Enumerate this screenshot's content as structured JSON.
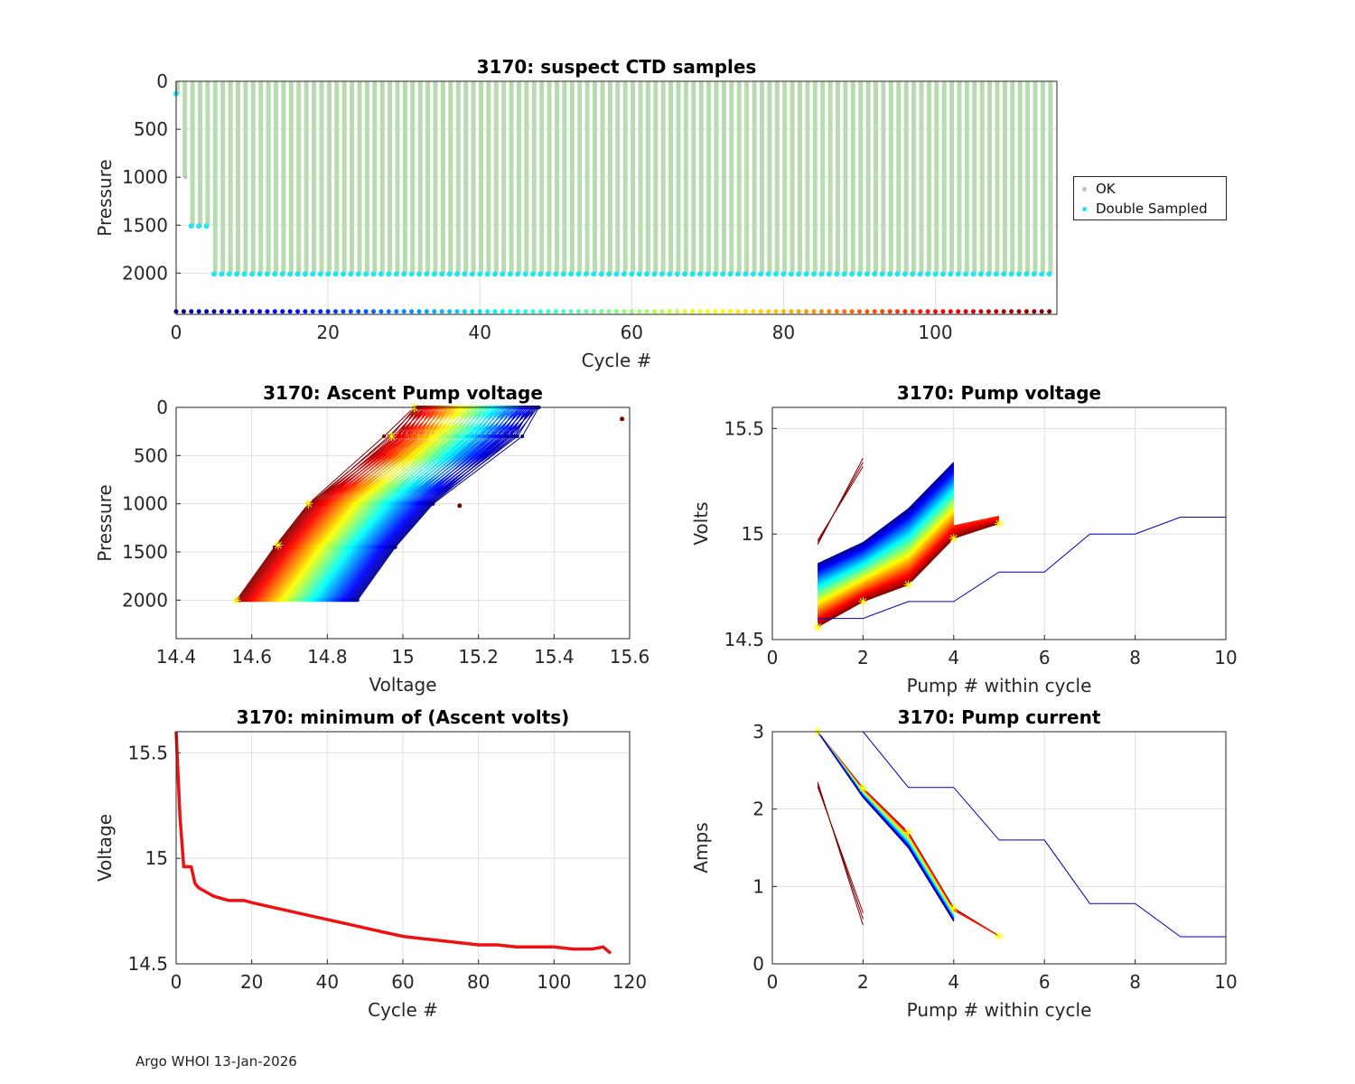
{
  "footer": "Argo WHOI 13-Jan-2026",
  "chart_data": [
    {
      "id": "suspect",
      "type": "scatter",
      "title": "3170: suspect CTD samples",
      "xlabel": "Cycle #",
      "ylabel": "Pressure",
      "xlim": [
        0,
        116
      ],
      "ylim": [
        2430,
        0
      ],
      "xticks": [
        "0",
        "20",
        "40",
        "60",
        "80",
        "100"
      ],
      "yticks": [
        "0",
        "500",
        "1000",
        "1500",
        "2000"
      ],
      "grid": true,
      "legend": {
        "placement": "right",
        "entries": [
          {
            "label": "OK",
            "color": "#c0c0c0"
          },
          {
            "label": "Double Sampled",
            "color": "#22e6ee"
          }
        ]
      },
      "cycles": [
        0,
        115
      ],
      "ok_depth_max": {
        "cycle_0": 130,
        "cycle_1": 1000,
        "cycles_2_4": 1500,
        "cycles_5_115": 2000
      },
      "double_sampled": [
        {
          "cycle": 0,
          "pressure": 130
        },
        {
          "cycles": [
            2,
            4
          ],
          "pressure": 1510
        },
        {
          "cycles": [
            5,
            115
          ],
          "pressure": 2010
        }
      ],
      "cycle_colorbar_row_pressure": 2400
    },
    {
      "id": "ascent",
      "type": "line",
      "title": "3170: Ascent Pump voltage",
      "xlabel": "Voltage",
      "ylabel": "Pressure",
      "xlim": [
        14.4,
        15.6
      ],
      "ylim": [
        2400,
        0
      ],
      "xticks": [
        "14.4",
        "14.6",
        "14.8",
        "15",
        "15.2",
        "15.4",
        "15.6"
      ],
      "yticks": [
        "0",
        "500",
        "1000",
        "1500",
        "2000"
      ],
      "grid": true,
      "profiles": {
        "cycles": 116,
        "pressures": [
          2000,
          1450,
          1000,
          300,
          0
        ],
        "first_cycle_voltages": [
          14.56,
          14.66,
          14.75,
          14.97,
          15.03
        ],
        "last_cycle_voltages": [
          14.88,
          14.98,
          15.08,
          15.3,
          15.36
        ],
        "outlier_point": [
          15.58,
          120
        ]
      },
      "markers_yellow": [
        [
          14.56,
          2000
        ],
        [
          14.67,
          1430
        ],
        [
          14.75,
          1000
        ],
        [
          14.97,
          300
        ],
        [
          15.03,
          0
        ]
      ]
    },
    {
      "id": "pumpvolt",
      "type": "line",
      "title": "3170: Pump voltage",
      "xlabel": "Pump # within cycle",
      "ylabel": "Volts",
      "xlim": [
        0,
        10
      ],
      "ylim": [
        14.5,
        15.6
      ],
      "xticks": [
        "0",
        "2",
        "4",
        "6",
        "8",
        "10"
      ],
      "yticks": [
        "14.5",
        "15",
        "15.5"
      ],
      "grid": true,
      "pumps": [
        1,
        2,
        3,
        4,
        5
      ],
      "first_cycle": [
        14.56,
        14.68,
        14.76,
        14.98,
        15.05
      ],
      "last_cycle": [
        14.86,
        14.96,
        15.12,
        15.34
      ],
      "long_cycle": {
        "pumps": [
          1,
          2,
          3,
          4,
          5,
          6,
          7,
          8,
          9,
          10
        ],
        "volts": [
          14.6,
          14.6,
          14.68,
          14.68,
          14.82,
          14.82,
          15.0,
          15.0,
          15.08,
          15.08
        ]
      },
      "outlier_cycle": {
        "pumps": [
          1,
          2
        ],
        "volts": [
          14.95,
          15.36
        ]
      }
    },
    {
      "id": "minvolt",
      "type": "line",
      "title": "3170: minimum of (Ascent volts)",
      "xlabel": "Cycle #",
      "ylabel": "Voltage",
      "xlim": [
        0,
        120
      ],
      "ylim": [
        14.5,
        15.6
      ],
      "xticks": [
        "0",
        "20",
        "40",
        "60",
        "80",
        "100",
        "120"
      ],
      "yticks": [
        "14.5",
        "15",
        "15.5"
      ],
      "grid": true,
      "series": [
        {
          "name": "min ascent volts",
          "color": "#ee1111",
          "x": [
            0,
            1,
            2,
            3,
            4,
            5,
            6,
            8,
            10,
            12,
            14,
            16,
            18,
            20,
            25,
            30,
            35,
            40,
            45,
            50,
            55,
            60,
            65,
            70,
            75,
            80,
            85,
            90,
            95,
            100,
            105,
            110,
            113,
            115
          ],
          "y": [
            15.6,
            15.2,
            14.96,
            14.96,
            14.96,
            14.88,
            14.86,
            14.84,
            14.82,
            14.81,
            14.8,
            14.8,
            14.8,
            14.79,
            14.77,
            14.75,
            14.73,
            14.71,
            14.69,
            14.67,
            14.65,
            14.63,
            14.62,
            14.61,
            14.6,
            14.59,
            14.59,
            14.58,
            14.58,
            14.58,
            14.57,
            14.57,
            14.58,
            14.55
          ]
        }
      ]
    },
    {
      "id": "pumpcurr",
      "type": "line",
      "title": "3170: Pump current",
      "xlabel": "Pump # within cycle",
      "ylabel": "Amps",
      "xlim": [
        0,
        10
      ],
      "ylim": [
        0,
        3
      ],
      "xticks": [
        "0",
        "2",
        "4",
        "6",
        "8",
        "10"
      ],
      "yticks": [
        "0",
        "1",
        "2",
        "3"
      ],
      "grid": true,
      "pumps": [
        1,
        2,
        3,
        4,
        5
      ],
      "first_cycle": [
        3.0,
        2.27,
        1.7,
        0.72,
        0.36
      ],
      "last_cycle": [
        3.0,
        2.15,
        1.5,
        0.55
      ],
      "long_cycle": {
        "pumps": [
          1,
          2,
          3,
          4,
          5,
          6,
          7,
          8,
          9,
          10
        ],
        "amps": [
          3.0,
          3.0,
          2.28,
          2.28,
          1.6,
          1.6,
          0.78,
          0.78,
          0.35,
          0.35
        ]
      },
      "outlier_cycle": {
        "pumps": [
          1,
          2
        ],
        "amps": [
          2.35,
          0.5
        ]
      }
    }
  ]
}
